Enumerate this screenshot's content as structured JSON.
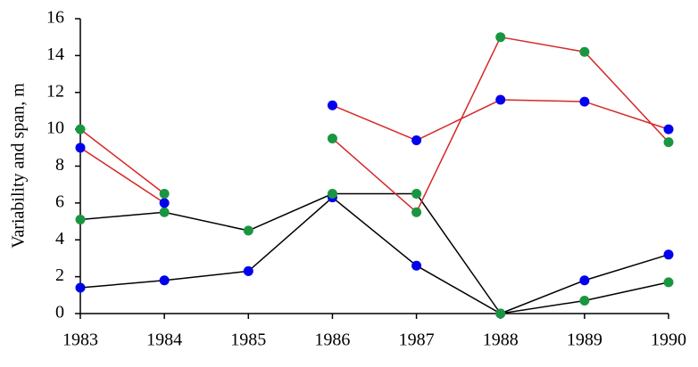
{
  "chart_data": {
    "type": "line",
    "ylabel": "Variability and span, m",
    "categories": [
      "1983",
      "1984",
      "1985",
      "1986",
      "1987",
      "1988",
      "1989",
      "1990"
    ],
    "series": [
      {
        "color": "#000000",
        "marker_color": "#0000ee",
        "values": [
          1.4,
          1.8,
          2.3,
          6.3,
          2.6,
          0,
          1.8,
          3.2
        ]
      },
      {
        "color": "#000000",
        "marker_color": "#1a9641",
        "values": [
          5.1,
          5.5,
          4.5,
          6.5,
          6.5,
          0,
          0.7,
          1.7
        ]
      },
      {
        "color": "#d62728",
        "marker_color": "#0000ee",
        "values": [
          9,
          6,
          null,
          11.3,
          9.4,
          11.6,
          11.5,
          10
        ]
      },
      {
        "color": "#d62728",
        "marker_color": "#1a9641",
        "values": [
          10,
          6.5,
          null,
          9.5,
          5.5,
          15,
          14.2,
          9.3
        ]
      }
    ],
    "ylim": [
      0,
      16
    ],
    "yticks": [
      0,
      2,
      4,
      6,
      8,
      10,
      12,
      14,
      16
    ]
  }
}
